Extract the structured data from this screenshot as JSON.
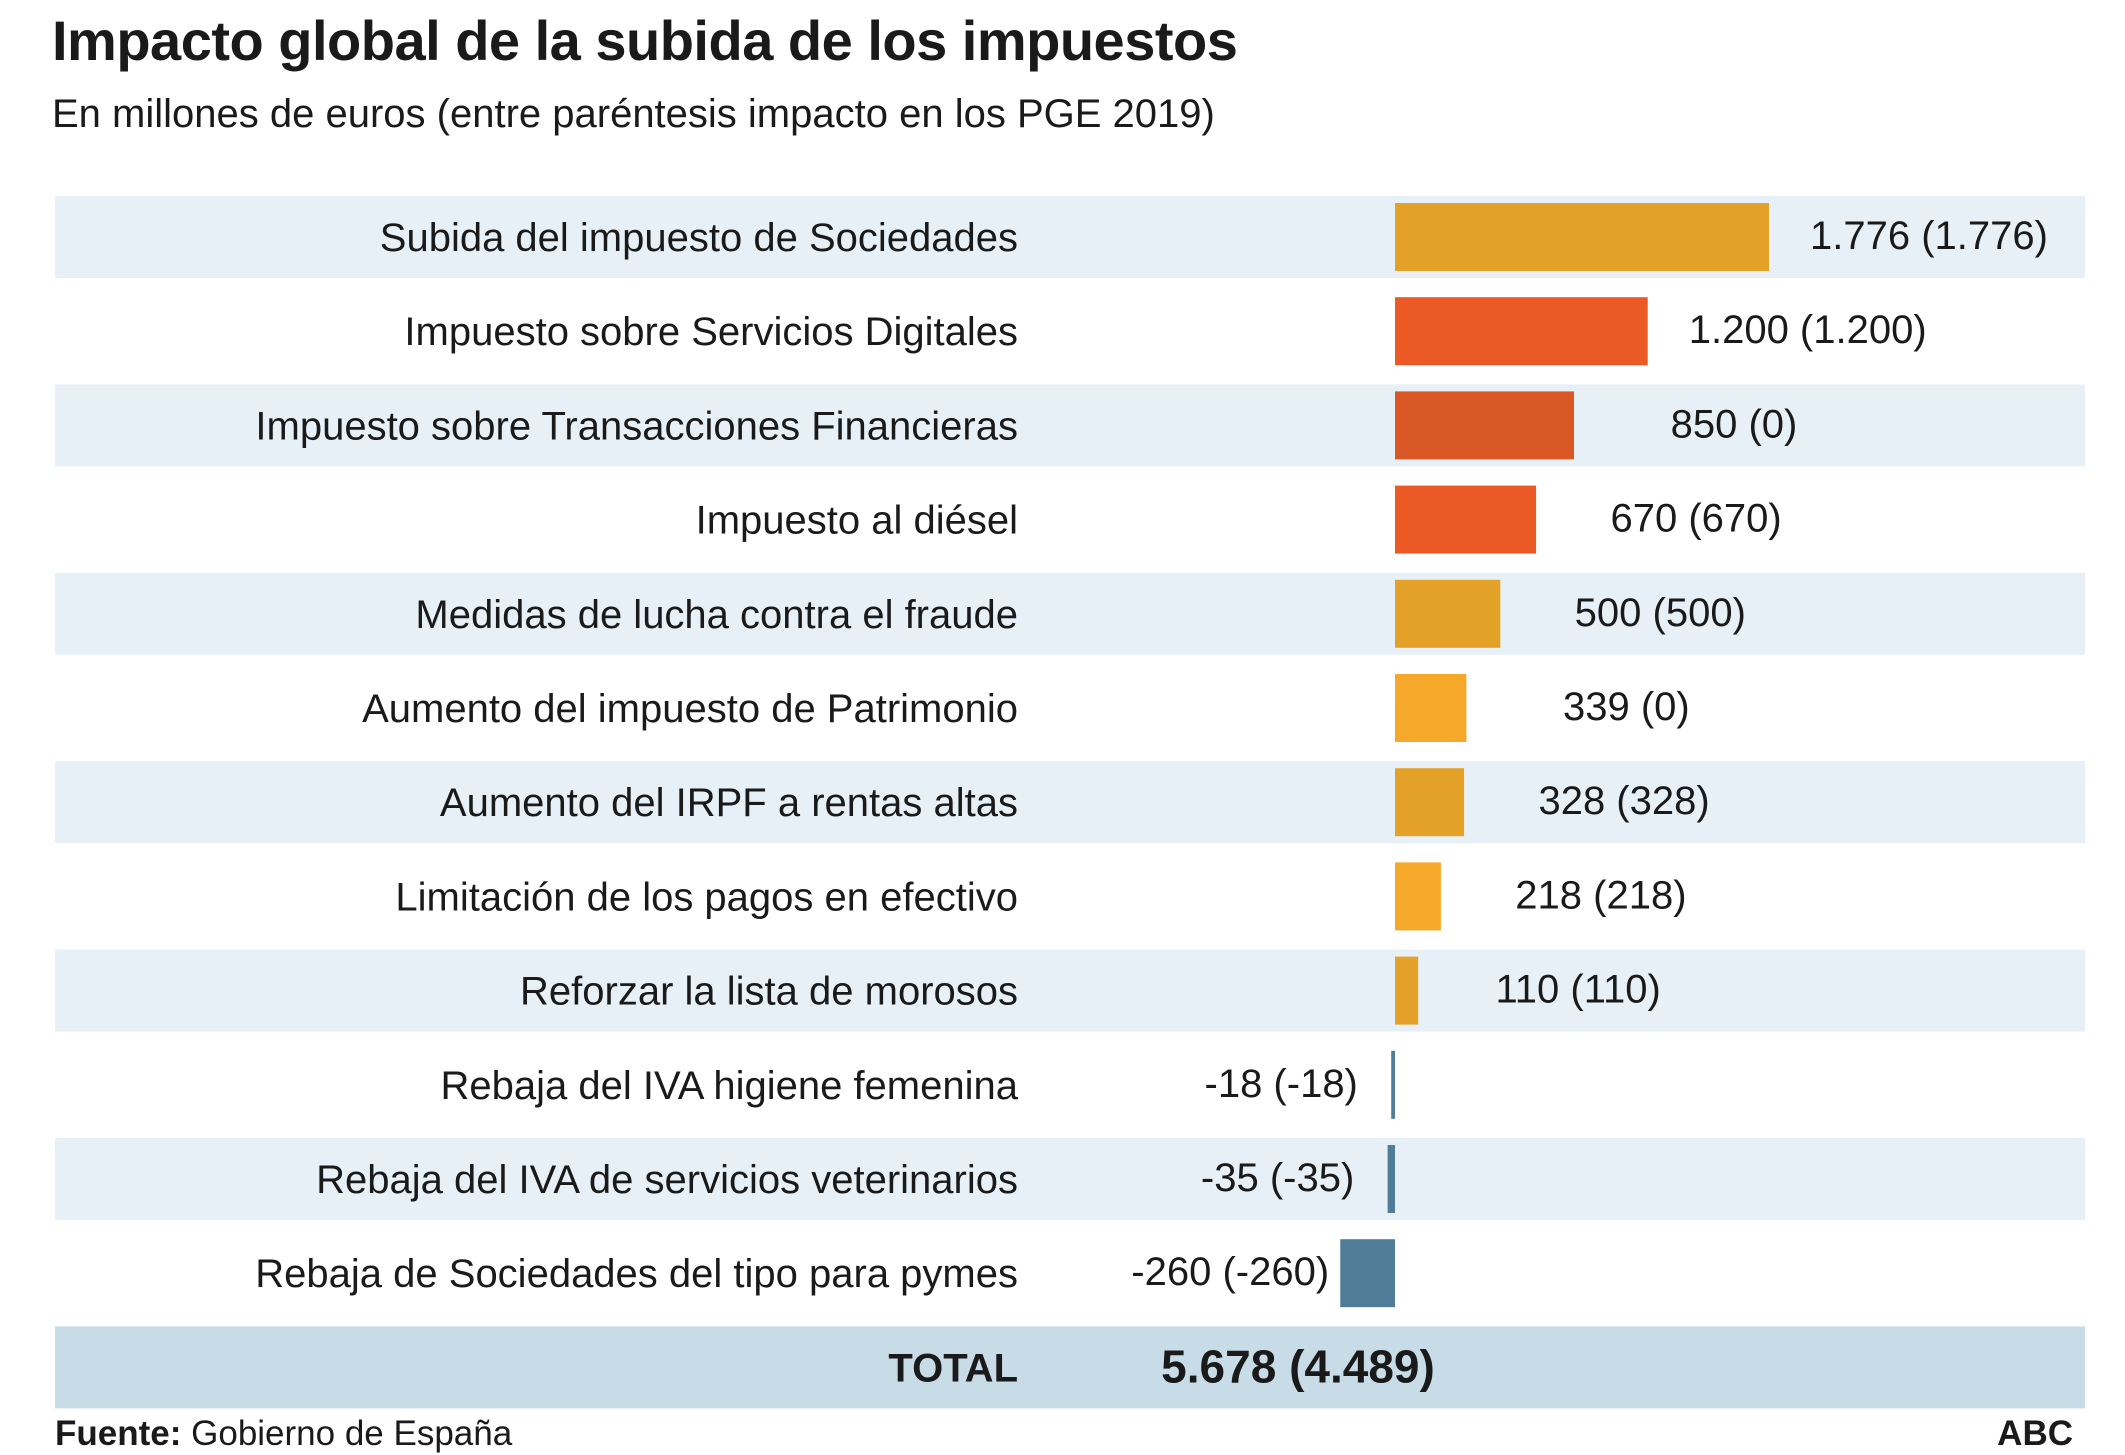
{
  "title": "Impacto global de la subida de los impuestos",
  "subtitle": "En millones de euros (entre paréntesis impacto en los PGE 2019)",
  "source_label": "Fuente:",
  "source_value": "Gobierno de España",
  "brand": "ABC",
  "colors": {
    "stripe": "#e8f0f7",
    "total_band": "#c8dce8",
    "text": "#1a1a1a",
    "negative": "#4f7d98"
  },
  "chart_data": {
    "type": "bar",
    "orientation": "horizontal",
    "title": "Impacto global de la subida de los impuestos",
    "xlabel": "",
    "ylabel": "En millones de euros",
    "categories": [
      "Subida del impuesto de Sociedades",
      "Impuesto sobre Servicios Digitales",
      "Impuesto sobre Transacciones Financieras",
      "Impuesto al diésel",
      "Medidas de lucha contra el fraude",
      "Aumento del impuesto de Patrimonio",
      "Aumento del IRPF a rentas altas",
      "Limitación de los pagos en efectivo",
      "Reforzar la lista de morosos",
      "Rebaja del IVA higiene femenina",
      "Rebaja del IVA de servicios veterinarios",
      "Rebaja de Sociedades del tipo para pymes"
    ],
    "values": [
      1776,
      1200,
      850,
      670,
      500,
      339,
      328,
      218,
      110,
      -18,
      -35,
      -260
    ],
    "labels": [
      "1.776 (1.776)",
      "1.200 (1.200)",
      "850 (0)",
      "670 (670)",
      "500 (500)",
      "339 (0)",
      "328 (328)",
      "218 (218)",
      "110 (110)",
      "-18 (-18)",
      "-35 (-35)",
      "-260 (-260)"
    ],
    "bar_colors": [
      "#e3a227",
      "#eb5a24",
      "#d95826",
      "#eb5a24",
      "#e3a227",
      "#f6a82a",
      "#e3a227",
      "#f6a82a",
      "#e3a227",
      "#4f7d98",
      "#4f7d98",
      "#4f7d98"
    ],
    "xlim": [
      -260,
      1776
    ],
    "total_label": "TOTAL",
    "total_value": "5.678 (4.489)"
  }
}
